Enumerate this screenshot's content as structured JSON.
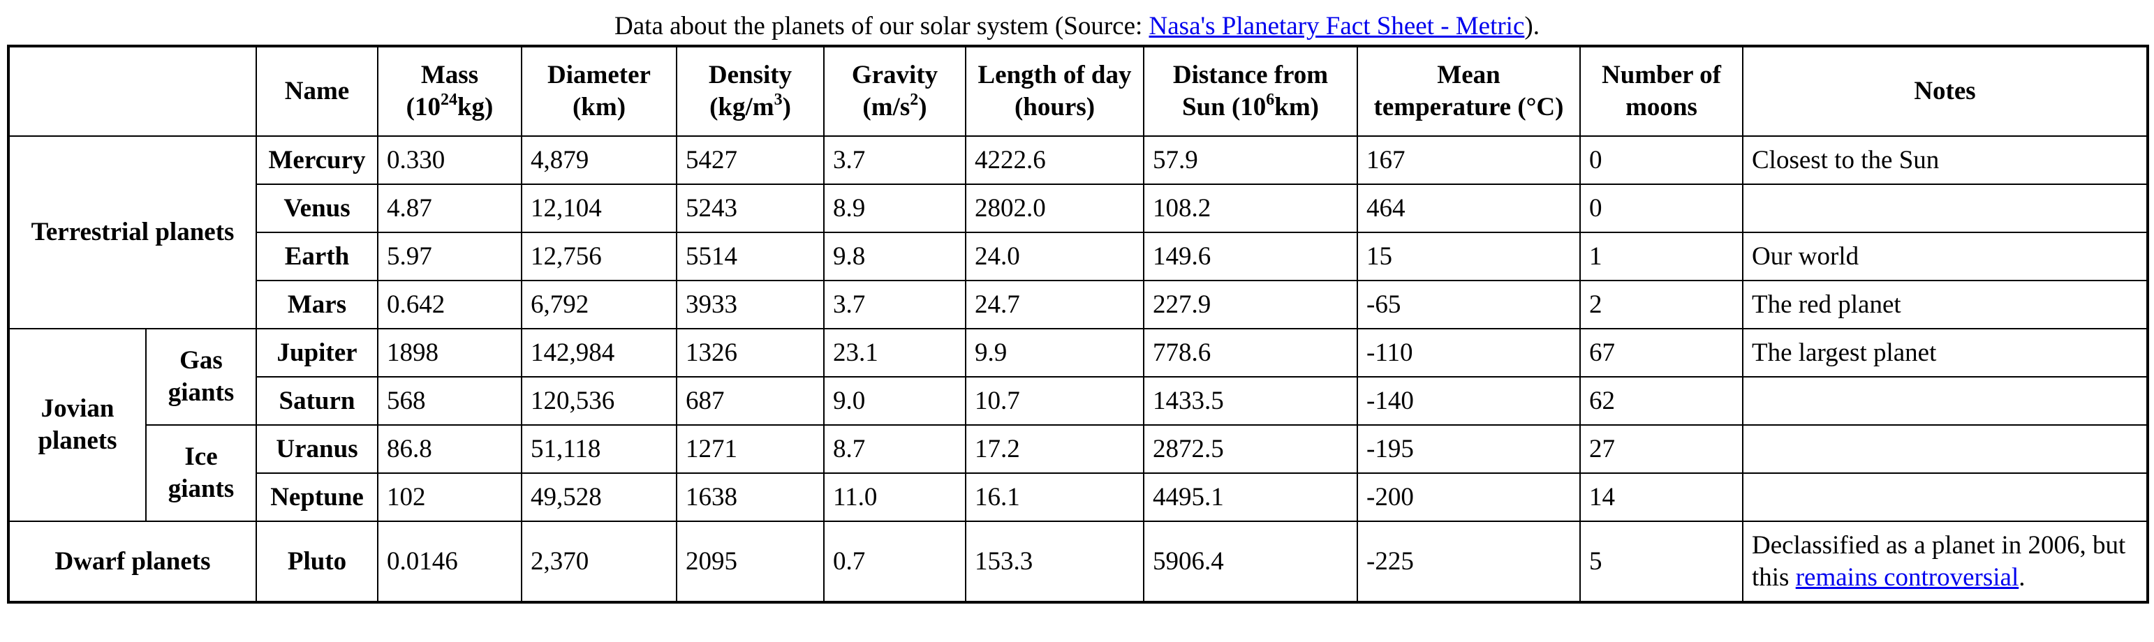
{
  "caption": {
    "prefix": "Data about the planets of our solar system (Source: ",
    "link_text": "Nasa's Planetary Fact Sheet - Metric",
    "suffix": ")."
  },
  "headers": {
    "name": "Name",
    "mass_pre": "Mass (10",
    "mass_sup": "24",
    "mass_post": "kg)",
    "diameter": "Diameter (km)",
    "density_pre": "Density (kg/m",
    "density_sup": "3",
    "density_post": ")",
    "gravity_pre": "Gravity (m/s",
    "gravity_sup": "2",
    "gravity_post": ")",
    "day": "Length of day (hours)",
    "distance_pre": "Distance from Sun (10",
    "distance_sup": "6",
    "distance_post": "km)",
    "temperature": "Mean temperature (°C)",
    "moons": "Number of moons",
    "notes": "Notes"
  },
  "groups": {
    "terrestrial": "Terrestrial planets",
    "jovian": "Jovian planets",
    "gas_giants": "Gas giants",
    "ice_giants": "Ice giants",
    "dwarf": "Dwarf planets"
  },
  "planets": [
    {
      "name": "Mercury",
      "mass": "0.330",
      "diameter": "4,879",
      "density": "5427",
      "gravity": "3.7",
      "day": "4222.6",
      "distance": "57.9",
      "temperature": "167",
      "moons": "0",
      "notes": "Closest to the Sun"
    },
    {
      "name": "Venus",
      "mass": "4.87",
      "diameter": "12,104",
      "density": "5243",
      "gravity": "8.9",
      "day": "2802.0",
      "distance": "108.2",
      "temperature": "464",
      "moons": "0",
      "notes": ""
    },
    {
      "name": "Earth",
      "mass": "5.97",
      "diameter": "12,756",
      "density": "5514",
      "gravity": "9.8",
      "day": "24.0",
      "distance": "149.6",
      "temperature": "15",
      "moons": "1",
      "notes": "Our world"
    },
    {
      "name": "Mars",
      "mass": "0.642",
      "diameter": "6,792",
      "density": "3933",
      "gravity": "3.7",
      "day": "24.7",
      "distance": "227.9",
      "temperature": "-65",
      "moons": "2",
      "notes": "The red planet"
    },
    {
      "name": "Jupiter",
      "mass": "1898",
      "diameter": "142,984",
      "density": "1326",
      "gravity": "23.1",
      "day": "9.9",
      "distance": "778.6",
      "temperature": "-110",
      "moons": "67",
      "notes": "The largest planet"
    },
    {
      "name": "Saturn",
      "mass": "568",
      "diameter": "120,536",
      "density": "687",
      "gravity": "9.0",
      "day": "10.7",
      "distance": "1433.5",
      "temperature": "-140",
      "moons": "62",
      "notes": ""
    },
    {
      "name": "Uranus",
      "mass": "86.8",
      "diameter": "51,118",
      "density": "1271",
      "gravity": "8.7",
      "day": "17.2",
      "distance": "2872.5",
      "temperature": "-195",
      "moons": "27",
      "notes": ""
    },
    {
      "name": "Neptune",
      "mass": "102",
      "diameter": "49,528",
      "density": "1638",
      "gravity": "11.0",
      "day": "16.1",
      "distance": "4495.1",
      "temperature": "-200",
      "moons": "14",
      "notes": ""
    },
    {
      "name": "Pluto",
      "mass": "0.0146",
      "diameter": "2,370",
      "density": "2095",
      "gravity": "0.7",
      "day": "153.3",
      "distance": "5906.4",
      "temperature": "-225",
      "moons": "5",
      "notes_pre": "Declassified as a planet in 2006, but this ",
      "notes_link": "remains controversial",
      "notes_post": "."
    }
  ]
}
